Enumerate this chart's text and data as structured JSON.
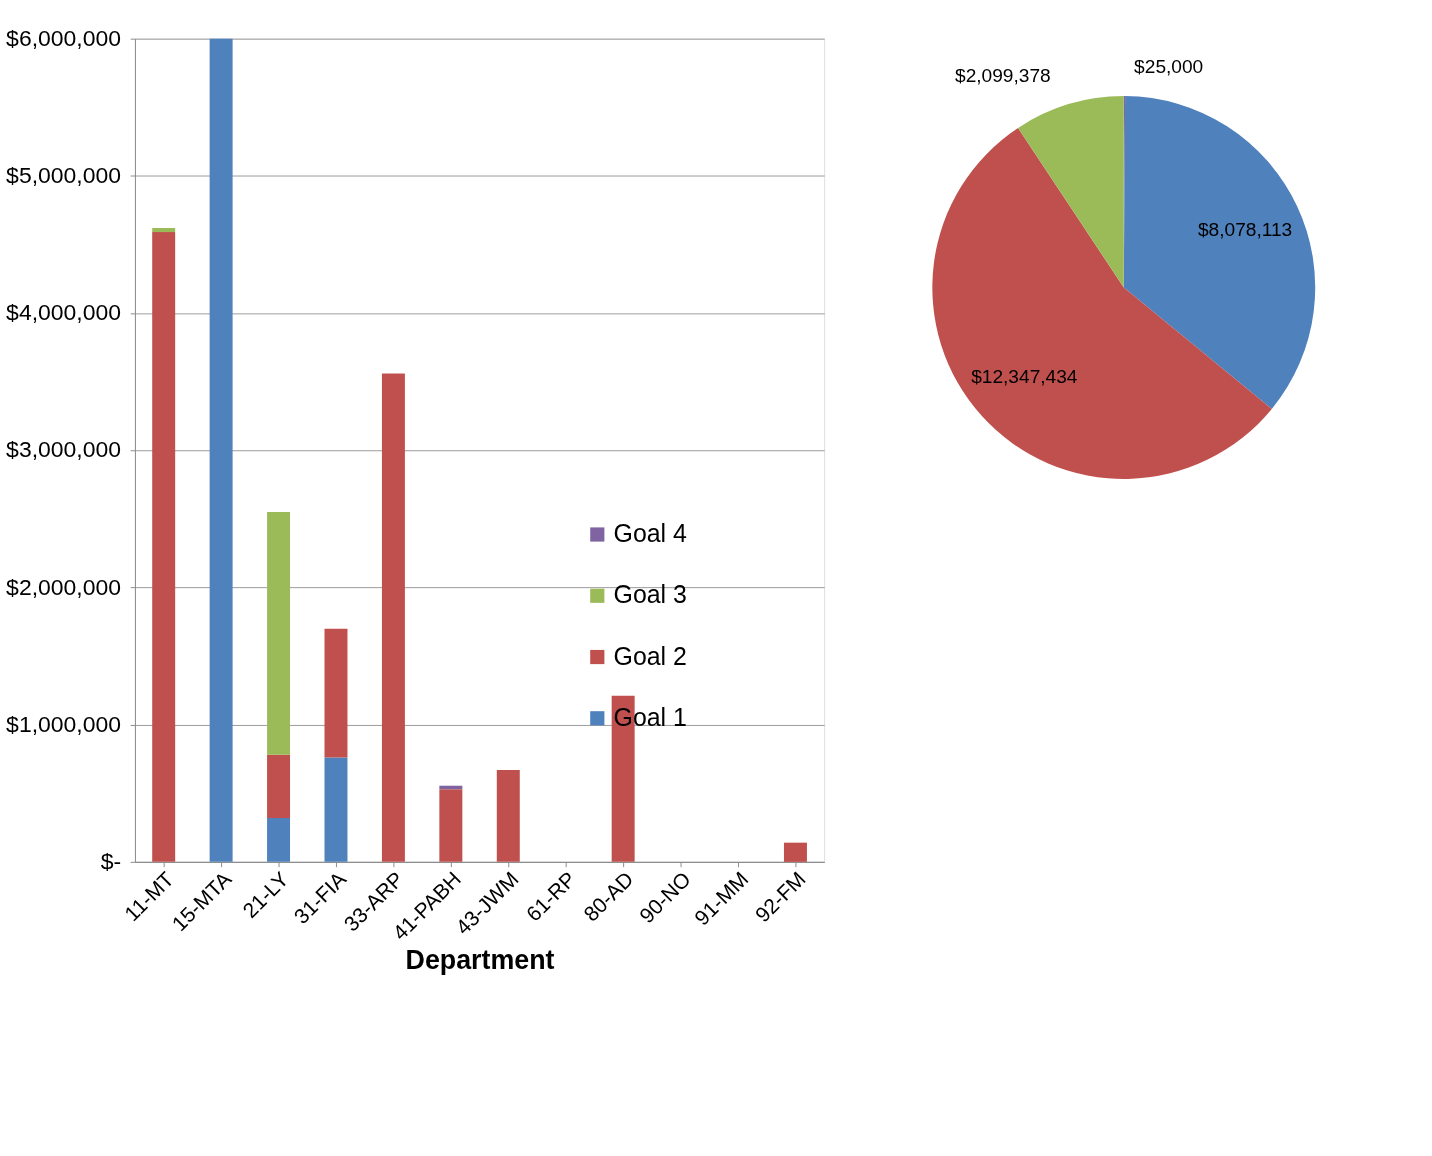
{
  "chart_data": [
    {
      "type": "bar",
      "stacked": true,
      "xlabel": "Department",
      "categories": [
        "11-MT",
        "15-MTA",
        "21-LY",
        "31-FIA",
        "33-ARP",
        "41-PABH",
        "43-JWM",
        "61-RP",
        "80-AD",
        "90-NO",
        "91-MM",
        "92-FM"
      ],
      "series": [
        {
          "name": "Goal 1",
          "color": "#4f81bd",
          "values": [
            0,
            6000000,
            320000,
            760000,
            0,
            0,
            0,
            0,
            0,
            0,
            0,
            0
          ]
        },
        {
          "name": "Goal 2",
          "color": "#c0504d",
          "values": [
            4590000,
            0,
            460000,
            940000,
            3560000,
            530000,
            670000,
            0,
            1210000,
            0,
            0,
            140000
          ]
        },
        {
          "name": "Goal 3",
          "color": "#9bbb59",
          "values": [
            30000,
            0,
            1770000,
            0,
            0,
            0,
            0,
            0,
            0,
            0,
            0,
            0
          ]
        },
        {
          "name": "Goal 4",
          "color": "#8064a2",
          "values": [
            0,
            0,
            0,
            0,
            0,
            25000,
            0,
            0,
            0,
            0,
            0,
            0
          ]
        }
      ],
      "ylim": [
        0,
        6000000
      ],
      "yticks": [
        {
          "value": 0,
          "label": "$-"
        },
        {
          "value": 1000000,
          "label": "$1,000,000"
        },
        {
          "value": 2000000,
          "label": "$2,000,000"
        },
        {
          "value": 3000000,
          "label": "$3,000,000"
        },
        {
          "value": 4000000,
          "label": "$4,000,000"
        },
        {
          "value": 5000000,
          "label": "$5,000,000"
        },
        {
          "value": 6000000,
          "label": "$6,000,000"
        }
      ],
      "grid": "y",
      "legend": "right"
    },
    {
      "type": "pie",
      "categories": [
        null,
        null,
        null,
        null
      ],
      "values": [
        25000,
        8078113,
        12347434,
        2099378
      ],
      "colors": [
        "#8064a2",
        "#4f81bd",
        "#c0504d",
        "#9bbb59"
      ],
      "value_labels": [
        "$25,000",
        "$8,078,113",
        "$12,347,434",
        "$2,099,378"
      ]
    }
  ]
}
